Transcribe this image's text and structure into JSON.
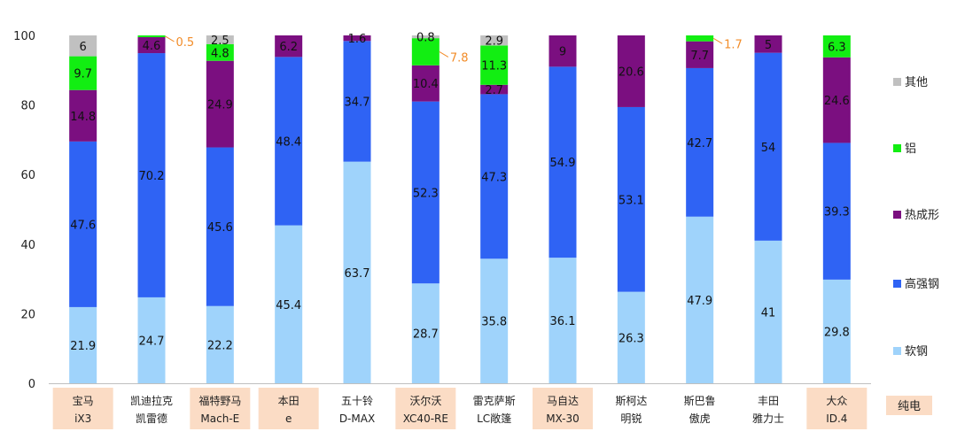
{
  "chart_data": {
    "type": "stacked_bar",
    "ylim": [
      0,
      100
    ],
    "yticks": [
      0,
      20,
      40,
      60,
      80,
      100
    ],
    "categories": [
      {
        "line1": "宝马",
        "line2": "iX3",
        "ev": true
      },
      {
        "line1": "凯迪拉克",
        "line2": "凯雷德",
        "ev": false
      },
      {
        "line1": "福特野马",
        "line2": "Mach-E",
        "ev": true
      },
      {
        "line1": "本田",
        "line2": "e",
        "ev": true
      },
      {
        "line1": "五十铃",
        "line2": "D-MAX",
        "ev": false
      },
      {
        "line1": "沃尔沃",
        "line2": "XC40-RE",
        "ev": true
      },
      {
        "line1": "雷克萨斯",
        "line2": "LC敞篷",
        "ev": false
      },
      {
        "line1": "马自达",
        "line2": "MX-30",
        "ev": true
      },
      {
        "line1": "斯柯达",
        "line2": "明锐",
        "ev": false
      },
      {
        "line1": "斯巴鲁",
        "line2": "傲虎",
        "ev": false
      },
      {
        "line1": "丰田",
        "line2": "雅力士",
        "ev": false
      },
      {
        "line1": "大众",
        "line2": "ID.4",
        "ev": true
      }
    ],
    "series": [
      {
        "name": "软钢",
        "color": "#9fd3fb",
        "values": [
          21.9,
          24.7,
          22.2,
          45.4,
          63.7,
          28.7,
          35.8,
          36.1,
          26.3,
          47.9,
          41,
          29.8
        ]
      },
      {
        "name": "高强钢",
        "color": "#2f63f4",
        "values": [
          47.6,
          70.2,
          45.6,
          48.4,
          34.7,
          52.3,
          47.3,
          54.9,
          53.1,
          42.7,
          54,
          39.3
        ]
      },
      {
        "name": "热成形",
        "color": "#7b0f80",
        "values": [
          14.8,
          4.6,
          24.9,
          6.2,
          1.6,
          10.4,
          2.7,
          9,
          20.6,
          7.7,
          5,
          24.6
        ]
      },
      {
        "name": "铝",
        "color": "#12ee12",
        "values": [
          9.7,
          0.5,
          4.8,
          null,
          null,
          7.8,
          11.3,
          null,
          null,
          1.7,
          null,
          6.3
        ]
      },
      {
        "name": "其他",
        "color": "#c0c0c0",
        "values": [
          6,
          null,
          2.5,
          null,
          null,
          0.8,
          2.9,
          null,
          null,
          null,
          null,
          null
        ]
      }
    ],
    "callouts": [
      {
        "category": 1,
        "series": "铝",
        "text": "0.5"
      },
      {
        "category": 5,
        "series": "铝",
        "text": "7.8"
      },
      {
        "category": 9,
        "series": "铝",
        "text": "1.7"
      }
    ],
    "legend_order": [
      "其他",
      "铝",
      "热成形",
      "高强钢",
      "软钢"
    ],
    "ev_legend_label": "纯电",
    "ev_color": "#fbdcc5",
    "callout_color": "#f28c28",
    "legend_placement": "right"
  }
}
